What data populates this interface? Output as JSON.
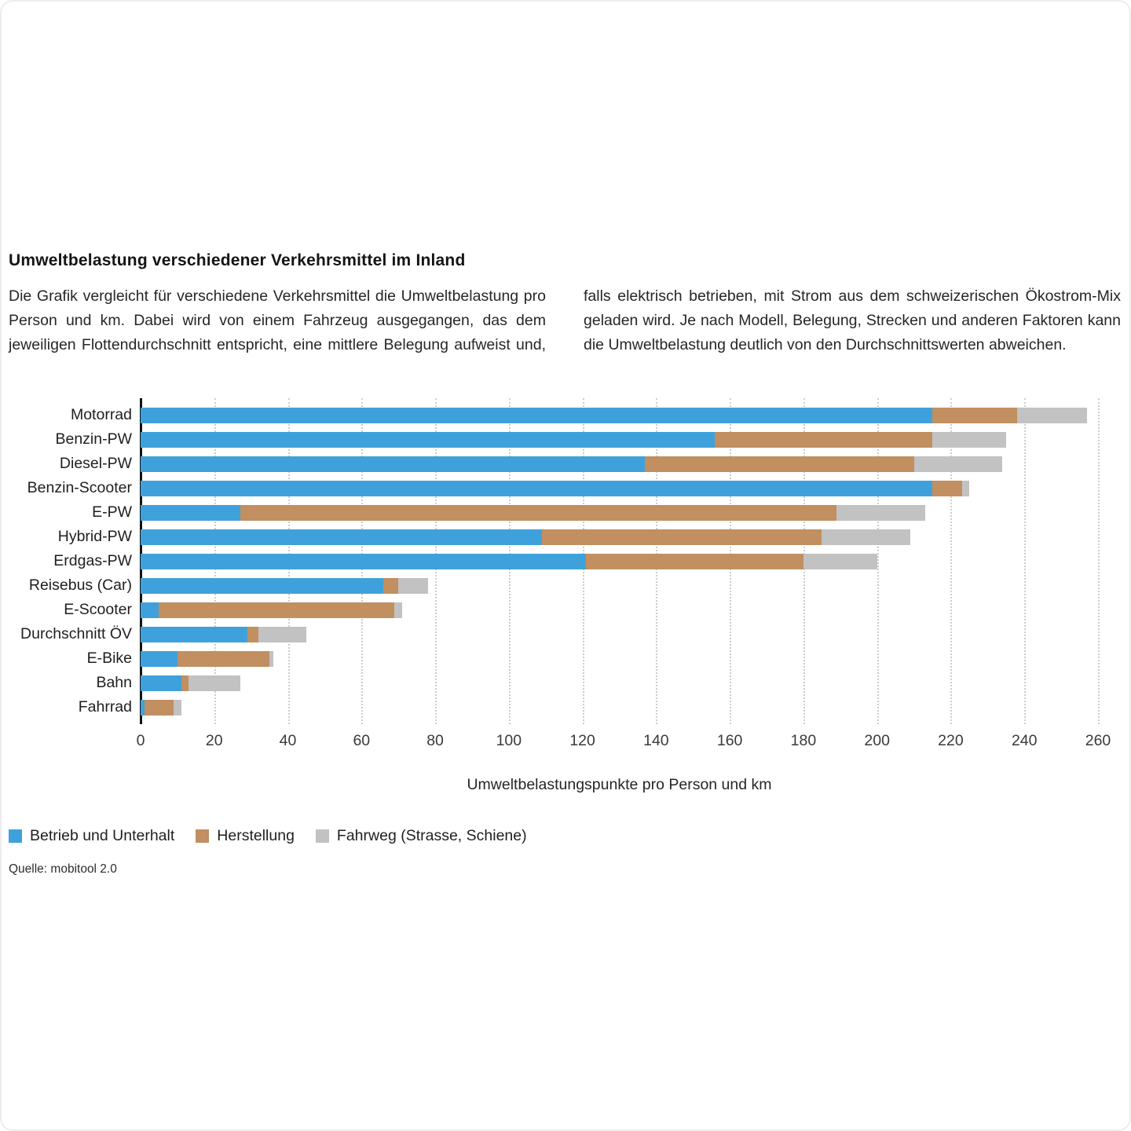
{
  "page": {
    "title": "Umweltbelastung verschiedener Verkehrsmittel im Inland",
    "intro_text": "Die Grafik vergleicht für verschiedene Verkehrsmittel die Umweltbelastung pro Person und km. Dabei wird von einem Fahrzeug ausgegangen, das dem jeweiligen Flottendurchschnitt entspricht, eine mittlere Belegung aufweist und, falls elektrisch betrieben, mit Strom aus dem schweizerischen Ökostrom-Mix geladen wird. Je nach Modell, Belegung, Strecken und anderen Faktoren kann die Umweltbelastung deutlich von den Durchschnittswerten abweichen.",
    "source": "Quelle: mobitool 2.0"
  },
  "chart_data": {
    "type": "bar",
    "orientation": "horizontal",
    "stacked": true,
    "title": "Umweltbelastung verschiedener Verkehrsmittel im Inland",
    "xlabel": "Umweltbelastungspunkte pro Person und km",
    "ylabel": "",
    "xlim": [
      0,
      260
    ],
    "xticks": [
      0,
      20,
      40,
      60,
      80,
      100,
      120,
      140,
      160,
      180,
      200,
      220,
      240,
      260
    ],
    "grid": "vertical-dotted",
    "legend_position": "bottom-left",
    "categories": [
      "Motorrad",
      "Benzin-PW",
      "Diesel-PW",
      "Benzin-Scooter",
      "E-PW",
      "Hybrid-PW",
      "Erdgas-PW",
      "Reisebus (Car)",
      "E-Scooter",
      "Durchschnitt ÖV",
      "E-Bike",
      "Bahn",
      "Fahrrad"
    ],
    "series": [
      {
        "name": "Betrieb und Unterhalt",
        "color": "#3FA1DB",
        "values": [
          215,
          156,
          137,
          215,
          27,
          109,
          121,
          66,
          5,
          29,
          10,
          11,
          1
        ]
      },
      {
        "name": "Herstellung",
        "color": "#C18F60",
        "values": [
          23,
          59,
          73,
          8,
          162,
          76,
          59,
          4,
          64,
          3,
          25,
          2,
          8
        ]
      },
      {
        "name": "Fahrweg (Strasse, Schiene)",
        "color": "#C2C2C2",
        "values": [
          19,
          20,
          24,
          2,
          24,
          24,
          20,
          8,
          2,
          13,
          1,
          14,
          2
        ]
      }
    ],
    "colors": {
      "axis": "#111111",
      "gridline": "#cdcdcd",
      "text": "#1f1f1f"
    }
  }
}
